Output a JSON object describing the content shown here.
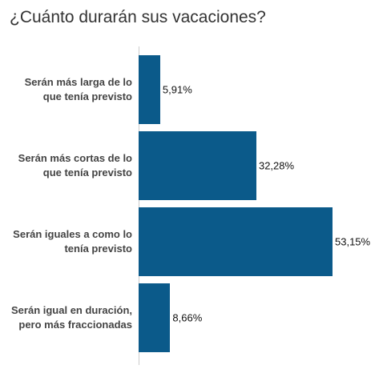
{
  "chart_data": {
    "type": "bar",
    "orientation": "horizontal",
    "title": "¿Cuánto durarán sus vacaciones?",
    "categories": [
      "Serán más larga de lo\nque tenía previsto",
      "Serán más cortas de lo\nque tenía previsto",
      "Serán iguales a como lo\ntenía previsto",
      "Serán igual en duración,\npero más fraccionadas"
    ],
    "values": [
      5.91,
      32.28,
      53.15,
      8.66
    ],
    "value_labels": [
      "5,91%",
      "32,28%",
      "53,15%",
      "8,66%"
    ],
    "color": "#0b5a8a"
  }
}
